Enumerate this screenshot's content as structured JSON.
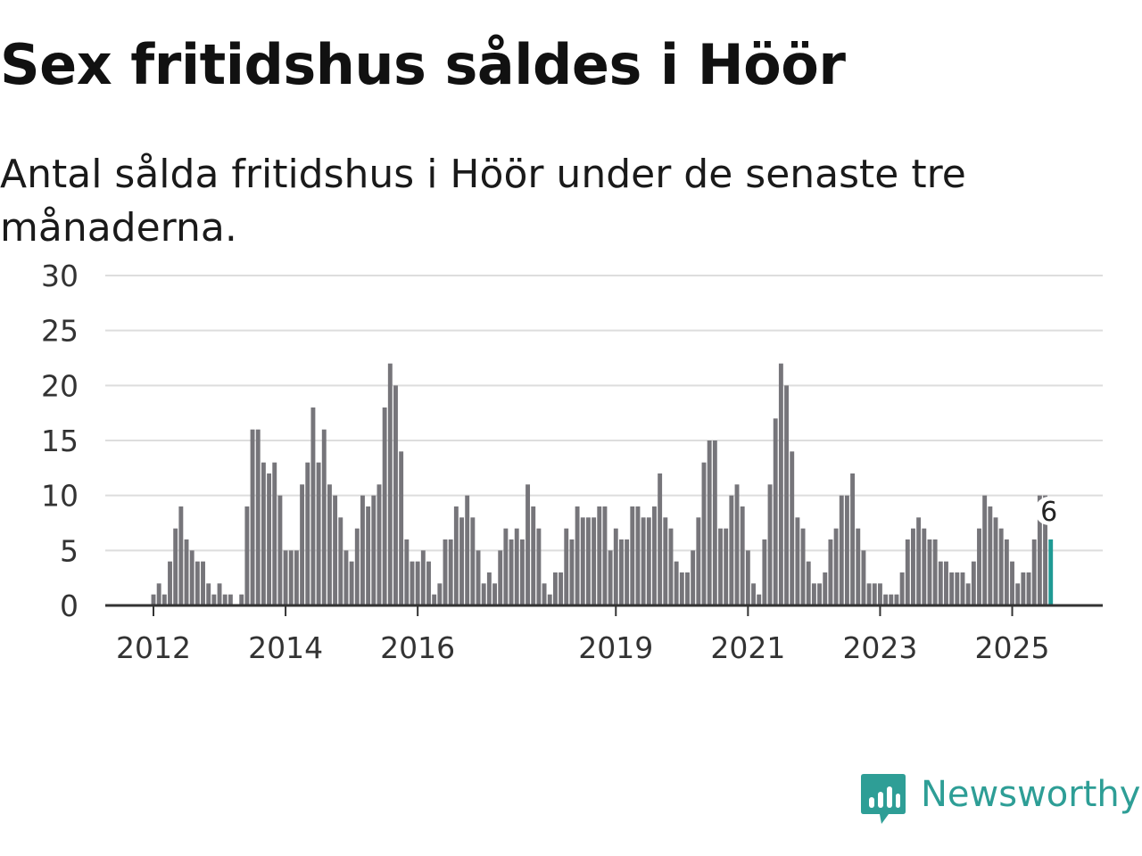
{
  "title": "Sex fritidshus såldes i Höör",
  "subtitle": "Antal sålda fritidshus i Höör under de senaste tre månaderna.",
  "brand": {
    "name": "Newsworthy",
    "color": "#2e9e96",
    "icon": "newsworthy-chart-bubble-icon"
  },
  "colors": {
    "bar": "#76757a",
    "highlight": "#1f9a94",
    "grid": "#dddddd",
    "axis": "#333333"
  },
  "chart_data": {
    "type": "bar",
    "title": "Sex fritidshus såldes i Höör",
    "ylabel": "",
    "xlabel": "",
    "ylim": [
      0,
      30
    ],
    "yticks": [
      0,
      5,
      10,
      15,
      20,
      25,
      30
    ],
    "grid": true,
    "x_tick_labels": [
      {
        "label": "2012",
        "index": 0
      },
      {
        "label": "2014",
        "index": 24
      },
      {
        "label": "2016",
        "index": 48
      },
      {
        "label": "2019",
        "index": 84
      },
      {
        "label": "2021",
        "index": 108
      },
      {
        "label": "2023",
        "index": 132
      },
      {
        "label": "2025",
        "index": 156
      }
    ],
    "start": "2012-01",
    "values": [
      1,
      2,
      1,
      4,
      7,
      9,
      6,
      5,
      4,
      4,
      2,
      1,
      2,
      1,
      1,
      0,
      1,
      9,
      16,
      16,
      13,
      12,
      13,
      10,
      5,
      5,
      5,
      11,
      13,
      18,
      13,
      16,
      11,
      10,
      8,
      5,
      4,
      7,
      10,
      9,
      10,
      11,
      18,
      22,
      20,
      14,
      6,
      4,
      4,
      5,
      4,
      1,
      2,
      6,
      6,
      9,
      8,
      10,
      8,
      5,
      2,
      3,
      2,
      5,
      7,
      6,
      7,
      6,
      11,
      9,
      7,
      2,
      1,
      3,
      3,
      7,
      6,
      9,
      8,
      8,
      8,
      9,
      9,
      5,
      7,
      6,
      6,
      9,
      9,
      8,
      8,
      9,
      12,
      8,
      7,
      4,
      3,
      3,
      5,
      8,
      13,
      15,
      15,
      7,
      7,
      10,
      11,
      9,
      5,
      2,
      1,
      6,
      11,
      17,
      22,
      20,
      14,
      8,
      7,
      4,
      2,
      2,
      3,
      6,
      7,
      10,
      10,
      12,
      7,
      5,
      2,
      2,
      2,
      1,
      1,
      1,
      3,
      6,
      7,
      8,
      7,
      6,
      6,
      4,
      4,
      3,
      3,
      3,
      2,
      4,
      7,
      10,
      9,
      8,
      7,
      6,
      4,
      2,
      3,
      3,
      6,
      10,
      10,
      6
    ],
    "highlight_last": true,
    "last_value_label": "6"
  }
}
